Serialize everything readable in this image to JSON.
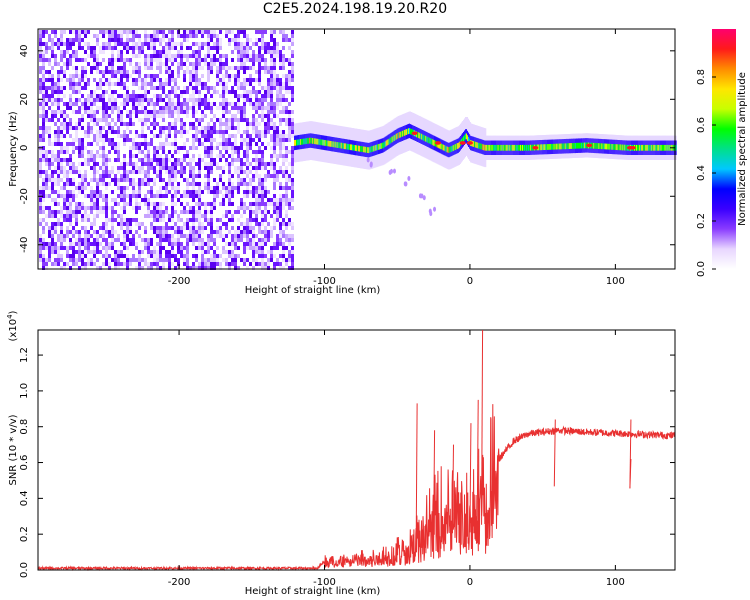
{
  "title": "C2E5.2024.198.19.20.R20",
  "chart_data": [
    {
      "type": "heatmap",
      "xlabel": "Height of straight line (km)",
      "ylabel": "Frequency (Hz)",
      "xlim": [
        -297,
        141
      ],
      "ylim": [
        -50,
        49
      ],
      "x_ticks": [
        "-200",
        "-100",
        "0",
        "100"
      ],
      "x_tick_values": [
        -200,
        -100,
        0,
        100
      ],
      "y_ticks": [
        "-40",
        "-20",
        "0",
        "20",
        "40"
      ],
      "y_tick_values": [
        -40,
        -20,
        0,
        20,
        40
      ],
      "colorbar": {
        "label": "Normalized spectral amplitude",
        "range": [
          0,
          1
        ],
        "ticks": [
          "0.0",
          "0.2",
          "0.4",
          "0.6",
          "0.8"
        ],
        "tick_values": [
          0.0,
          0.2,
          0.4,
          0.6,
          0.8
        ],
        "colors": [
          "#ffffff",
          "#e8d6ff",
          "#8a3cff",
          "#3a00ff",
          "#0000ff",
          "#00c8ff",
          "#00e08a",
          "#00ff00",
          "#c8ff00",
          "#ffe600",
          "#ff8c00",
          "#ff1a1a",
          "#ff006e"
        ]
      },
      "noise_region": {
        "x_from": -297,
        "x_to": -121,
        "freq_range": [
          -50,
          49
        ],
        "amplitude": "low (0.05–0.25)"
      },
      "signal_track": [
        {
          "x": -121,
          "freq": 2
        },
        {
          "x": -110,
          "freq": 3
        },
        {
          "x": -100,
          "freq": 2
        },
        {
          "x": -90,
          "freq": 1
        },
        {
          "x": -80,
          "freq": 0
        },
        {
          "x": -70,
          "freq": -1
        },
        {
          "x": -60,
          "freq": 1
        },
        {
          "x": -50,
          "freq": 5
        },
        {
          "x": -42,
          "freq": 7
        },
        {
          "x": -35,
          "freq": 5
        },
        {
          "x": -25,
          "freq": 2
        },
        {
          "x": -15,
          "freq": -1
        },
        {
          "x": -8,
          "freq": 1
        },
        {
          "x": -3,
          "freq": 5
        },
        {
          "x": 0,
          "freq": 2
        },
        {
          "x": 5,
          "freq": 1
        },
        {
          "x": 10,
          "freq": 0
        },
        {
          "x": 40,
          "freq": 0
        },
        {
          "x": 80,
          "freq": 1
        },
        {
          "x": 108,
          "freq": 0
        },
        {
          "x": 141,
          "freq": 0
        }
      ],
      "secondary_track": [
        {
          "x": -70,
          "freq": -8
        },
        {
          "x": -55,
          "freq": -12
        },
        {
          "x": -45,
          "freq": -15
        },
        {
          "x": -35,
          "freq": -22
        },
        {
          "x": -28,
          "freq": -28
        }
      ]
    },
    {
      "type": "line",
      "xlabel": "Height of straight line (km)",
      "ylabel": "SNR (10 * v/v)",
      "scale_label": "(x10",
      "scale_exp": "4",
      "scale_close": ")",
      "xlim": [
        -297,
        141
      ],
      "ylim": [
        0,
        1.34
      ],
      "x_ticks": [
        "-200",
        "-100",
        "0",
        "100"
      ],
      "x_tick_values": [
        -200,
        -100,
        0,
        100
      ],
      "y_ticks": [
        "0.0",
        "0.2",
        "0.4",
        "0.6",
        "0.8",
        "1.0",
        "1.2"
      ],
      "y_tick_values": [
        0.0,
        0.2,
        0.4,
        0.6,
        0.8,
        1.0,
        1.2
      ],
      "series": [
        {
          "color": "#e83030",
          "envelope": [
            {
              "x": -297,
              "y": 0.01
            },
            {
              "x": -200,
              "y": 0.01
            },
            {
              "x": -105,
              "y": 0.01
            },
            {
              "x": -100,
              "y": 0.05
            },
            {
              "x": -80,
              "y": 0.06
            },
            {
              "x": -60,
              "y": 0.08
            },
            {
              "x": -45,
              "y": 0.12
            },
            {
              "x": -35,
              "y": 0.2
            },
            {
              "x": -25,
              "y": 0.3
            },
            {
              "x": -15,
              "y": 0.36
            },
            {
              "x": -5,
              "y": 0.3
            },
            {
              "x": 5,
              "y": 0.4
            },
            {
              "x": 12,
              "y": 0.45
            },
            {
              "x": 20,
              "y": 0.62
            },
            {
              "x": 30,
              "y": 0.72
            },
            {
              "x": 40,
              "y": 0.76
            },
            {
              "x": 60,
              "y": 0.78
            },
            {
              "x": 80,
              "y": 0.77
            },
            {
              "x": 110,
              "y": 0.76
            },
            {
              "x": 141,
              "y": 0.75
            }
          ],
          "spikes": [
            {
              "x": 8,
              "y": 1.34
            },
            {
              "x": 5,
              "y": 0.95
            },
            {
              "x": -37,
              "y": 0.93
            },
            {
              "x": -25,
              "y": 0.78
            },
            {
              "x": -12,
              "y": 0.7
            },
            {
              "x": 0,
              "y": 0.82
            },
            {
              "x": 58,
              "y": 0.84
            },
            {
              "x": 110,
              "y": 0.84
            },
            {
              "x": 110,
              "y": 0.62
            }
          ]
        }
      ]
    }
  ]
}
